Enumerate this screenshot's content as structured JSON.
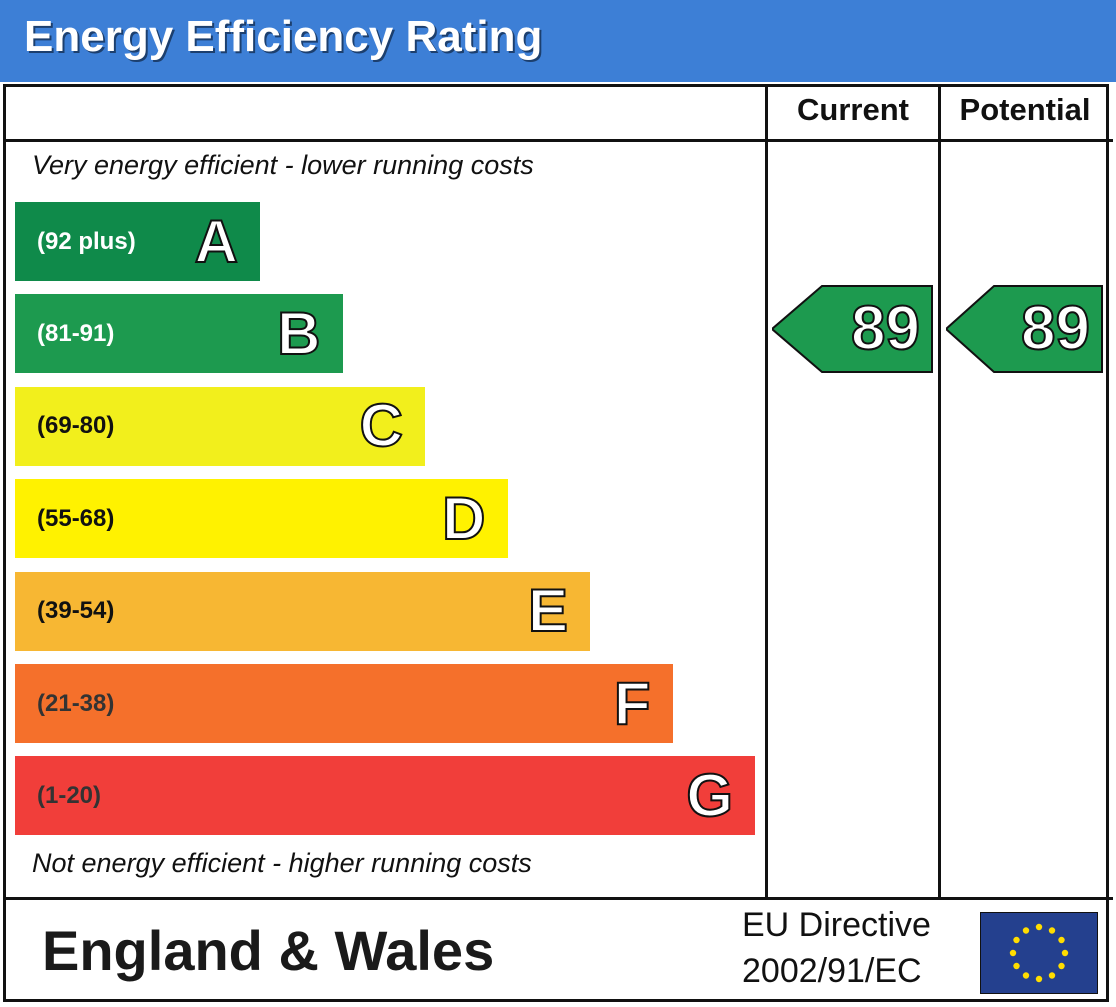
{
  "header": {
    "title": "Energy Efficiency Rating"
  },
  "columns": {
    "current_label": "Current",
    "potential_label": "Potential"
  },
  "captions": {
    "top": "Very energy efficient - lower running costs",
    "bottom": "Not energy efficient - higher running costs"
  },
  "footer": {
    "region": "England & Wales",
    "directive_line1": "EU Directive",
    "directive_line2": "2002/91/EC",
    "flag_icon": "eu-flag-icon"
  },
  "chart_data": {
    "type": "bar",
    "title": "Energy Efficiency Rating",
    "bands": [
      {
        "letter": "A",
        "range": "(92 plus)",
        "min": 92,
        "max": null,
        "color": "#0f8a4a",
        "text_color": "#ffffff"
      },
      {
        "letter": "B",
        "range": "(81-91)",
        "min": 81,
        "max": 91,
        "color": "#1d9a4f",
        "text_color": "#ffffff"
      },
      {
        "letter": "C",
        "range": "(69-80)",
        "min": 69,
        "max": 80,
        "color": "#f2ef1c",
        "text_color": "#111111"
      },
      {
        "letter": "D",
        "range": "(55-68)",
        "min": 55,
        "max": 68,
        "color": "#fff200",
        "text_color": "#111111"
      },
      {
        "letter": "E",
        "range": "(39-54)",
        "min": 39,
        "max": 54,
        "color": "#f7b733",
        "text_color": "#111111"
      },
      {
        "letter": "F",
        "range": "(21-38)",
        "min": 21,
        "max": 38,
        "color": "#f5702b",
        "text_color": "#333333"
      },
      {
        "letter": "G",
        "range": "(1-20)",
        "min": 1,
        "max": 20,
        "color": "#f13e3a",
        "text_color": "#333333"
      }
    ],
    "current": {
      "value": 89,
      "band": "B"
    },
    "potential": {
      "value": 89,
      "band": "B"
    }
  }
}
